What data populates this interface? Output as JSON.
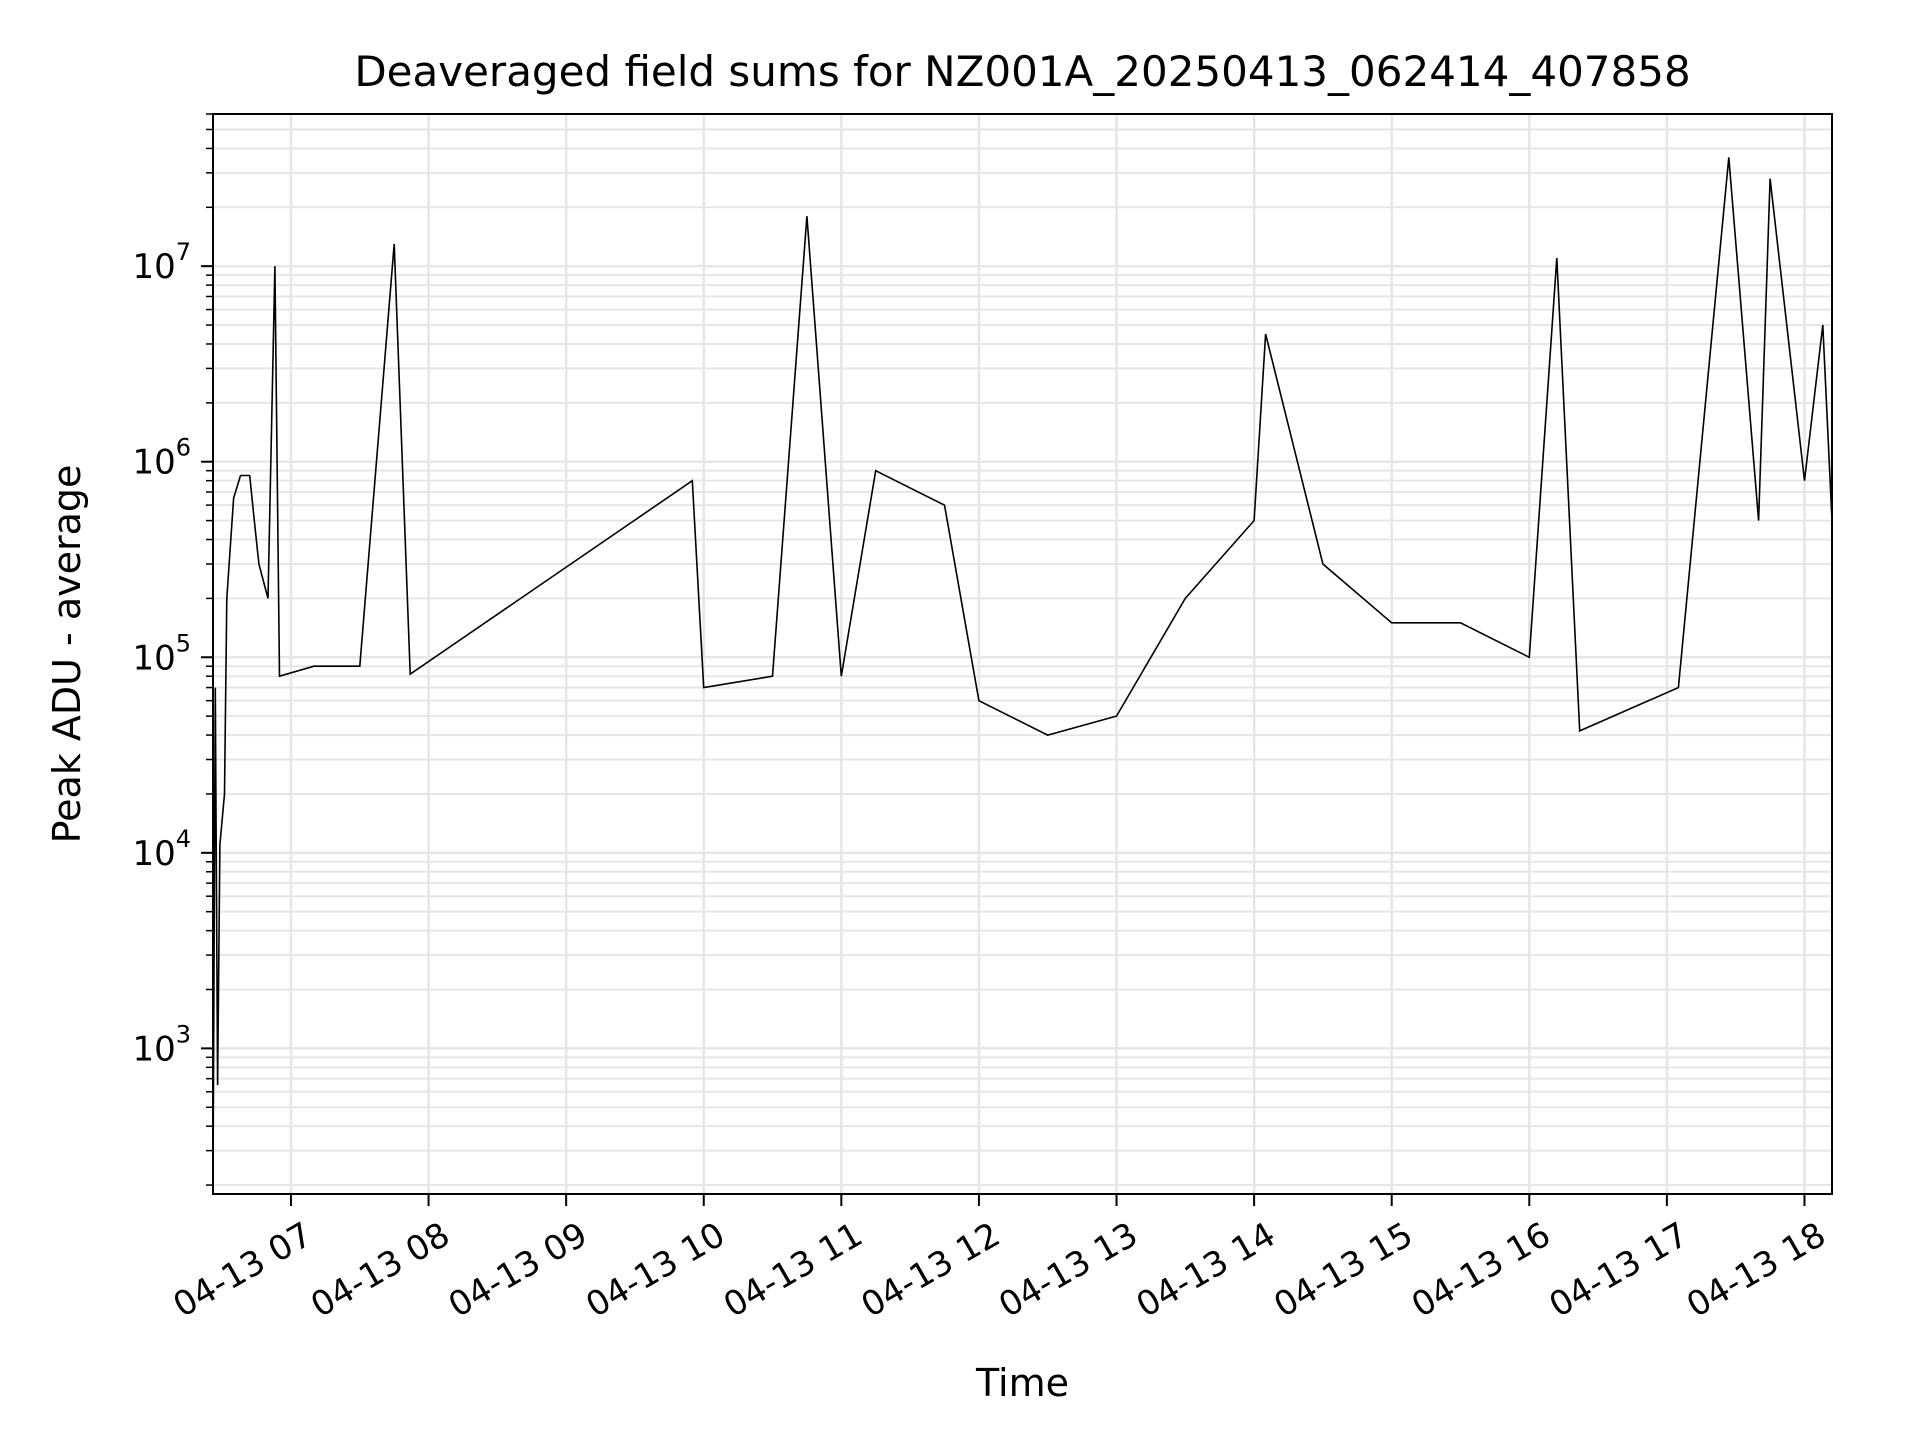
{
  "chart_data": {
    "type": "line",
    "title": "Deaveraged field sums for NZ001A_20250413_062414_407858",
    "xlabel": "Time",
    "ylabel": "Peak ADU - average",
    "yscale": "log",
    "ylim": [
      180,
      60000000
    ],
    "xlim": [
      "2025-04-13 06:26",
      "2025-04-13 18:12"
    ],
    "grid": true,
    "line_color": "#000000",
    "grid_color": "#e6e6e6",
    "x_ticks": [
      {
        "label": "04-13 07",
        "t": "2025-04-13 07:00"
      },
      {
        "label": "04-13 08",
        "t": "2025-04-13 08:00"
      },
      {
        "label": "04-13 09",
        "t": "2025-04-13 09:00"
      },
      {
        "label": "04-13 10",
        "t": "2025-04-13 10:00"
      },
      {
        "label": "04-13 11",
        "t": "2025-04-13 11:00"
      },
      {
        "label": "04-13 12",
        "t": "2025-04-13 12:00"
      },
      {
        "label": "04-13 13",
        "t": "2025-04-13 13:00"
      },
      {
        "label": "04-13 14",
        "t": "2025-04-13 14:00"
      },
      {
        "label": "04-13 15",
        "t": "2025-04-13 15:00"
      },
      {
        "label": "04-13 16",
        "t": "2025-04-13 16:00"
      },
      {
        "label": "04-13 17",
        "t": "2025-04-13 17:00"
      },
      {
        "label": "04-13 18",
        "t": "2025-04-13 18:00"
      }
    ],
    "y_ticks": [
      {
        "base": "10",
        "exp": "3",
        "value": 1000
      },
      {
        "base": "10",
        "exp": "4",
        "value": 10000
      },
      {
        "base": "10",
        "exp": "5",
        "value": 100000
      },
      {
        "base": "10",
        "exp": "6",
        "value": 1000000
      },
      {
        "base": "10",
        "exp": "7",
        "value": 10000000
      }
    ],
    "series": [
      {
        "points": [
          [
            "2025-04-13 06:26",
            200
          ],
          [
            "2025-04-13 06:27",
            70000
          ],
          [
            "2025-04-13 06:28",
            650
          ],
          [
            "2025-04-13 06:29",
            11000
          ],
          [
            "2025-04-13 06:31",
            20000
          ],
          [
            "2025-04-13 06:32",
            200000
          ],
          [
            "2025-04-13 06:35",
            650000
          ],
          [
            "2025-04-13 06:38",
            850000
          ],
          [
            "2025-04-13 06:42",
            850000
          ],
          [
            "2025-04-13 06:44",
            500000
          ],
          [
            "2025-04-13 06:46",
            300000
          ],
          [
            "2025-04-13 06:50",
            200000
          ],
          [
            "2025-04-13 06:53",
            10000000
          ],
          [
            "2025-04-13 06:55",
            80000
          ],
          [
            "2025-04-13 07:10",
            90000
          ],
          [
            "2025-04-13 07:30",
            90000
          ],
          [
            "2025-04-13 07:45",
            13000000
          ],
          [
            "2025-04-13 07:52",
            82000
          ],
          [
            "2025-04-13 09:55",
            800000
          ],
          [
            "2025-04-13 10:00",
            70000
          ],
          [
            "2025-04-13 10:30",
            80000
          ],
          [
            "2025-04-13 10:45",
            18000000
          ],
          [
            "2025-04-13 11:00",
            80000
          ],
          [
            "2025-04-13 11:15",
            900000
          ],
          [
            "2025-04-13 11:45",
            600000
          ],
          [
            "2025-04-13 12:00",
            60000
          ],
          [
            "2025-04-13 12:30",
            40000
          ],
          [
            "2025-04-13 13:00",
            50000
          ],
          [
            "2025-04-13 13:30",
            200000
          ],
          [
            "2025-04-13 14:00",
            500000
          ],
          [
            "2025-04-13 14:05",
            4500000
          ],
          [
            "2025-04-13 14:30",
            300000
          ],
          [
            "2025-04-13 15:00",
            150000
          ],
          [
            "2025-04-13 15:30",
            150000
          ],
          [
            "2025-04-13 16:00",
            100000
          ],
          [
            "2025-04-13 16:12",
            11000000
          ],
          [
            "2025-04-13 16:22",
            42000
          ],
          [
            "2025-04-13 17:05",
            70000
          ],
          [
            "2025-04-13 17:27",
            36000000
          ],
          [
            "2025-04-13 17:40",
            500000
          ],
          [
            "2025-04-13 17:45",
            28000000
          ],
          [
            "2025-04-13 18:00",
            800000
          ],
          [
            "2025-04-13 18:08",
            5000000
          ],
          [
            "2025-04-13 18:12",
            500000
          ]
        ]
      }
    ]
  }
}
